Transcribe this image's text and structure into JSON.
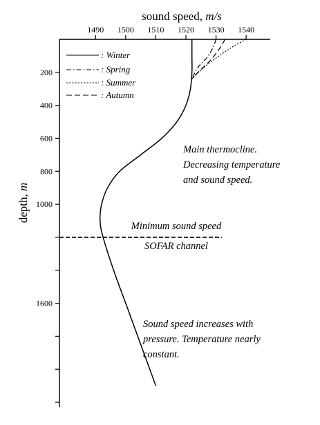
{
  "chart_data": {
    "type": "line",
    "xlabel": "sound speed,",
    "xlabel_unit": "m/s",
    "ylabel": "depth,",
    "ylabel_unit": "m",
    "xlim": [
      1478,
      1548
    ],
    "ylim": [
      0,
      2200
    ],
    "x_axis_position": "top",
    "x_ticks": [
      1490,
      1500,
      1510,
      1520,
      1530,
      1540
    ],
    "x_tick_labels": [
      "1490",
      "1500",
      "1510",
      "1520",
      "1530",
      "1540"
    ],
    "y_ticks": [
      200,
      400,
      600,
      800,
      1000,
      1200,
      1400,
      1600,
      1800,
      2000,
      2200
    ],
    "y_tick_labels": [
      "200",
      "400",
      "600",
      "800",
      "1000",
      "",
      "",
      "1600",
      "",
      "",
      ""
    ],
    "grid": false,
    "legend_position": "top-left",
    "legend": [
      {
        "name": "Winter",
        "label": ": Winter",
        "style": "solid"
      },
      {
        "name": "Spring",
        "label": ": Spring",
        "style": "dashdot"
      },
      {
        "name": "Summer",
        "label": ": Summer",
        "style": "dotted"
      },
      {
        "name": "Autumn",
        "label": ": Autumn",
        "style": "dashed"
      }
    ],
    "series": [
      {
        "name": "Winter",
        "style": "solid",
        "x": [
          1522,
          1522,
          1522,
          1521.5,
          1520,
          1517,
          1512,
          1505,
          1498,
          1494,
          1492,
          1491.5,
          1492.5,
          1496,
          1500,
          1504,
          1508,
          1510
        ],
        "y": [
          0,
          100,
          200,
          300,
          400,
          500,
          600,
          700,
          800,
          900,
          1000,
          1100,
          1200,
          1400,
          1600,
          1800,
          2000,
          2100
        ]
      },
      {
        "name": "Spring",
        "style": "dashdot",
        "x": [
          1530,
          1529,
          1527,
          1524,
          1522
        ],
        "y": [
          0,
          50,
          110,
          170,
          240
        ]
      },
      {
        "name": "Summer",
        "style": "dotted",
        "x": [
          1540,
          1536,
          1531,
          1526,
          1522
        ],
        "y": [
          0,
          40,
          100,
          170,
          240
        ]
      },
      {
        "name": "Autumn",
        "style": "dashed",
        "x": [
          1533,
          1531,
          1528,
          1524,
          1522
        ],
        "y": [
          0,
          60,
          130,
          200,
          240
        ]
      }
    ],
    "reference_line": {
      "depth": 1200,
      "style": "dashed",
      "x_from": 1478,
      "x_to": 1532
    },
    "annotations": [
      {
        "lines": [
          "Main thermocline.",
          "Decreasing temperature",
          "and sound speed."
        ]
      },
      {
        "lines": [
          "Minimum sound speed"
        ]
      },
      {
        "lines": [
          "SOFAR channel"
        ]
      },
      {
        "lines": [
          "Sound speed increases with",
          "pressure. Temperature nearly",
          "constant."
        ]
      }
    ]
  }
}
